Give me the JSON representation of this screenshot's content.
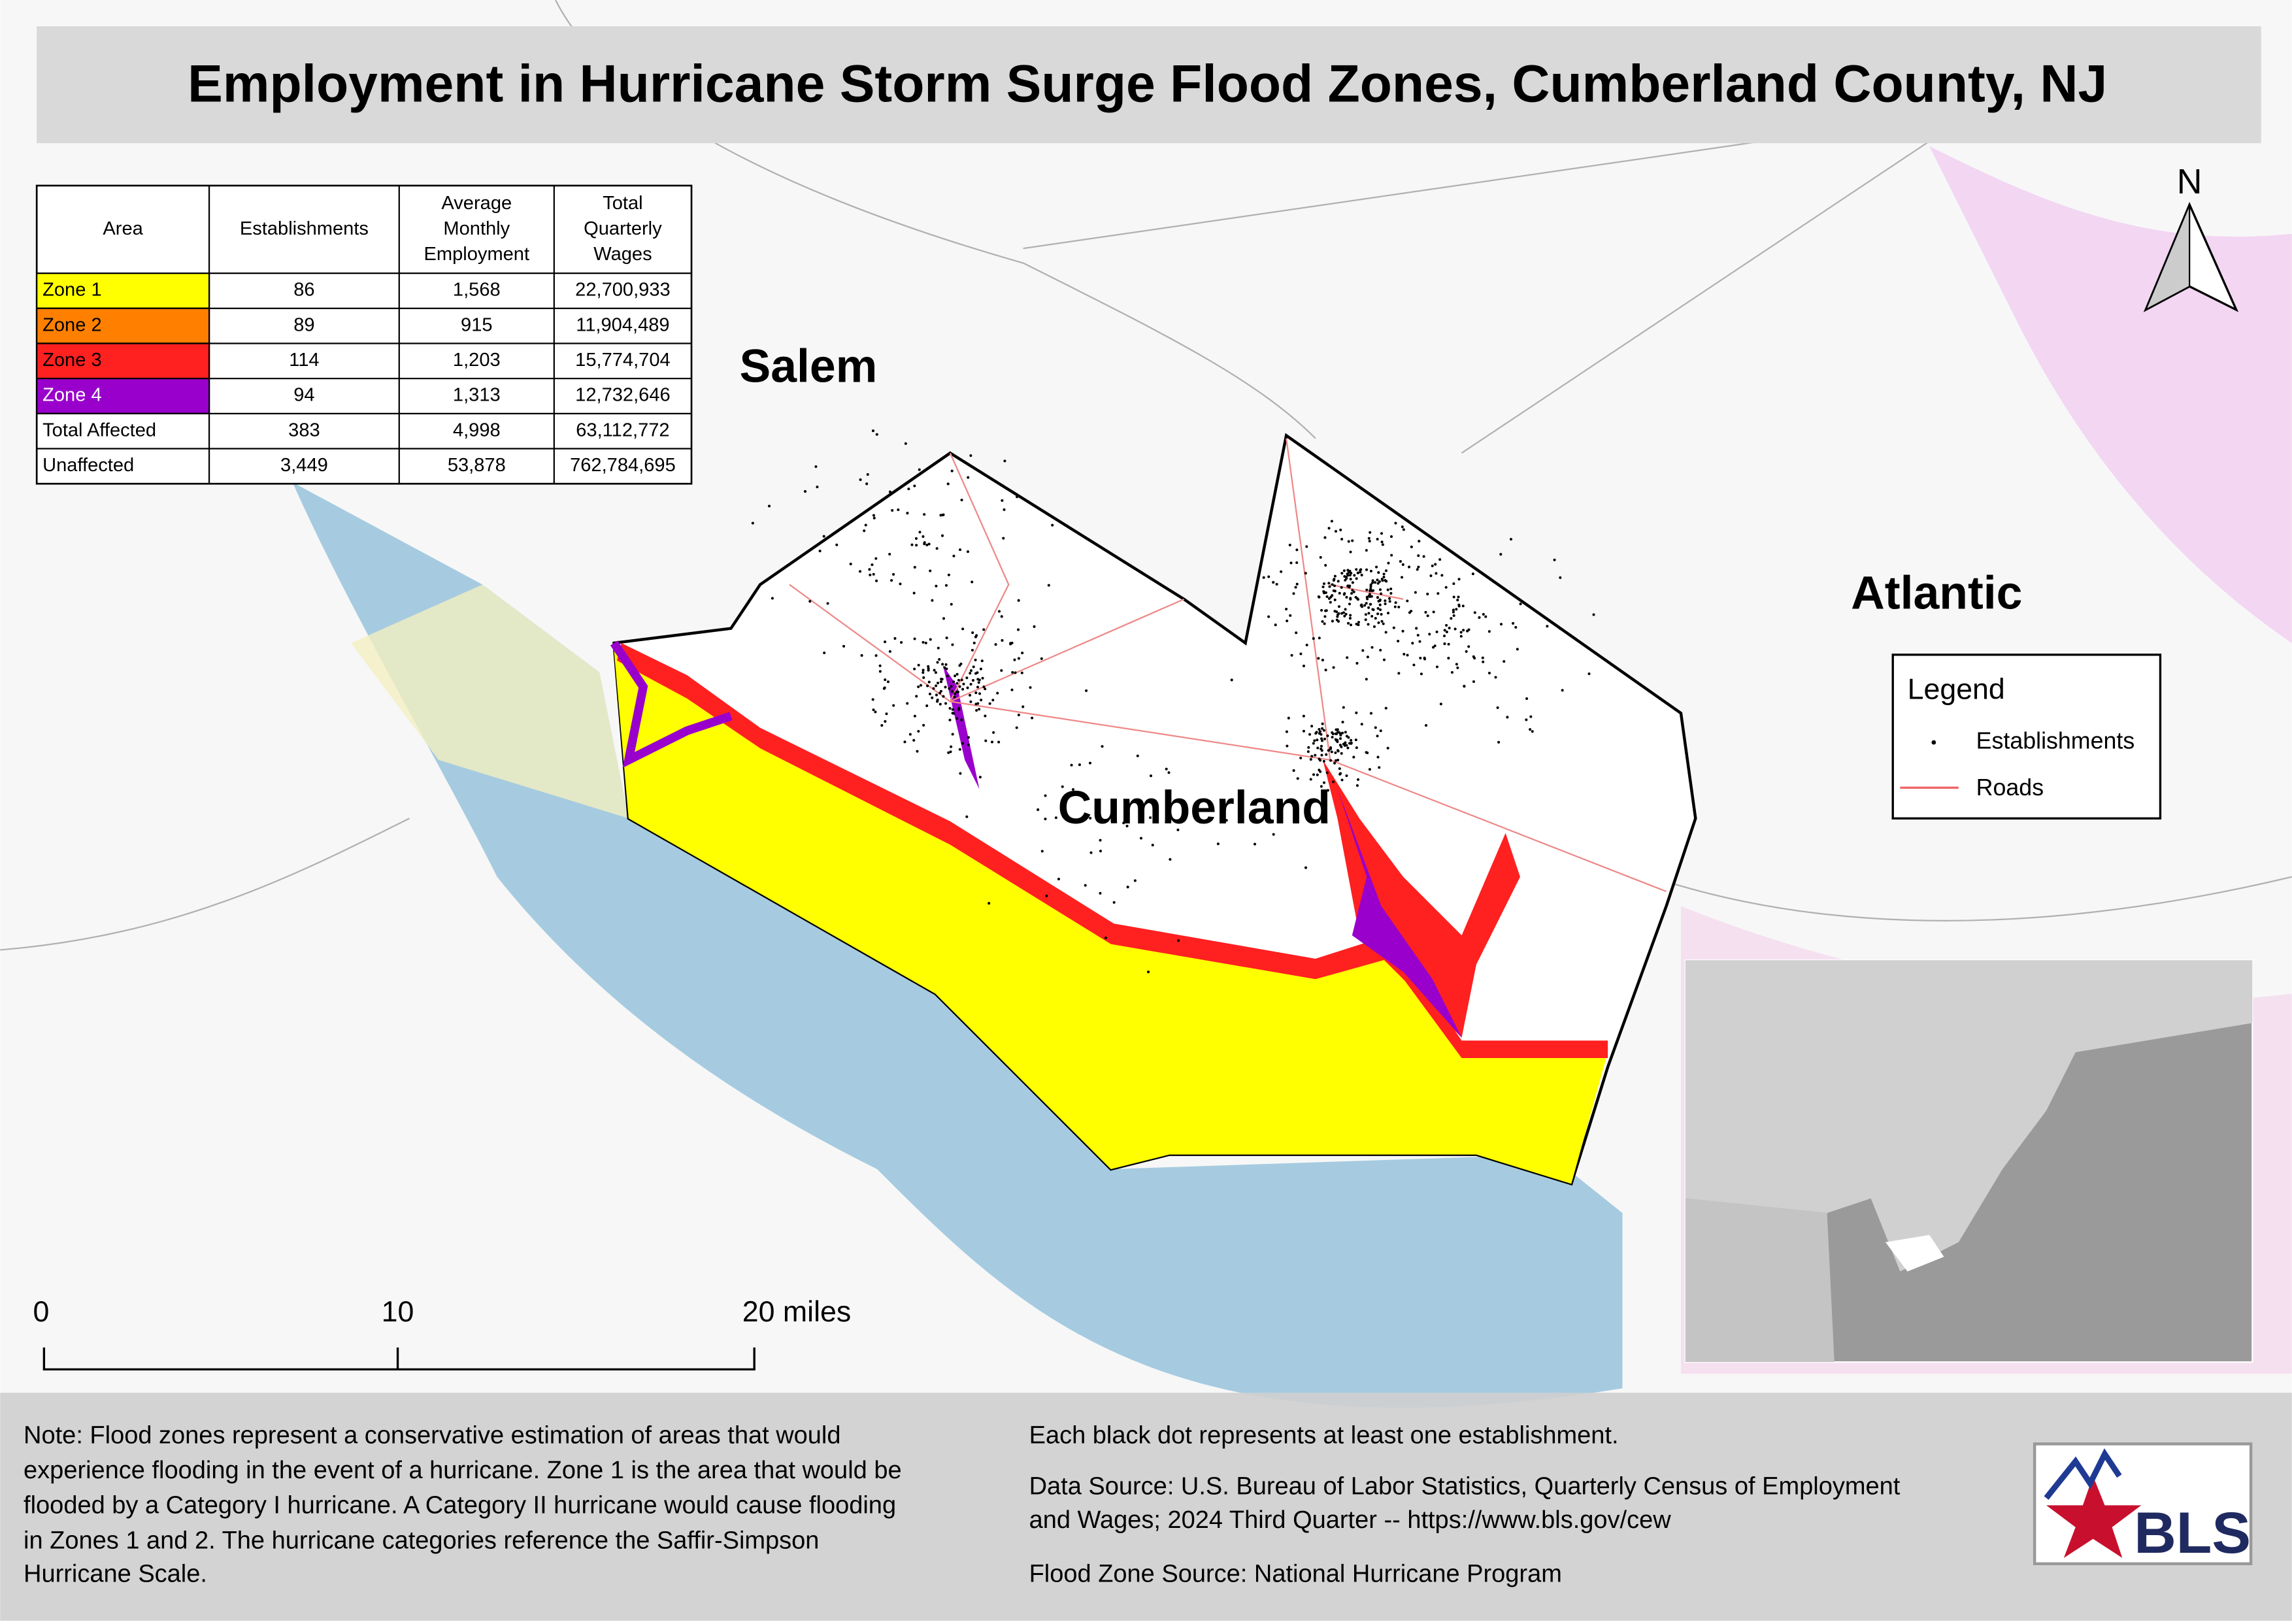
{
  "title": "Employment in Hurricane Storm Surge Flood Zones, Cumberland County, NJ",
  "table": {
    "headers": [
      "Area",
      "Establishments",
      "Average Monthly Employment",
      "Total Quarterly Wages"
    ],
    "rows": [
      [
        "Zone 1",
        "86",
        "1,568",
        "22,700,933"
      ],
      [
        "Zone 2",
        "89",
        "915",
        "11,904,489"
      ],
      [
        "Zone 3",
        "114",
        "1,203",
        "15,774,704"
      ],
      [
        "Zone 4",
        "94",
        "1,313",
        "12,732,646"
      ],
      [
        "Total Affected",
        "383",
        "4,998",
        "63,112,772"
      ],
      [
        "Unaffected",
        "3,449",
        "53,878",
        "762,784,695"
      ]
    ],
    "row_colors": [
      "#ffff00",
      "#ff8000",
      "#ff2020",
      "#9900cc",
      null,
      null
    ]
  },
  "map_labels": {
    "salem": "Salem",
    "cumberland": "Cumberland",
    "atlantic": "Atlantic"
  },
  "north": "N",
  "legend": {
    "title": "Legend",
    "items": [
      "Establishments",
      "Roads"
    ]
  },
  "scale_bar": [
    "0",
    "10",
    "20 miles"
  ],
  "note": [
    "Note: Flood zones represent a conservative estimation of areas that would",
    "experience flooding in the event of a hurricane. Zone 1 is the area that would be",
    "flooded by a Category I hurricane. A Category II hurricane would cause flooding",
    "in Zones 1 and 2. The hurricane categories reference the Saffir-Simpson",
    "Hurricane Scale."
  ],
  "info": [
    "Each black dot represents at least one establishment.",
    "Data Source: U.S. Bureau of Labor Statistics, Quarterly Census of Employment",
    "and Wages; 2024 Third Quarter -- https://www.bls.gov/cew",
    "Flood Zone Source: National Hurricane Program"
  ],
  "logo": "BLS"
}
